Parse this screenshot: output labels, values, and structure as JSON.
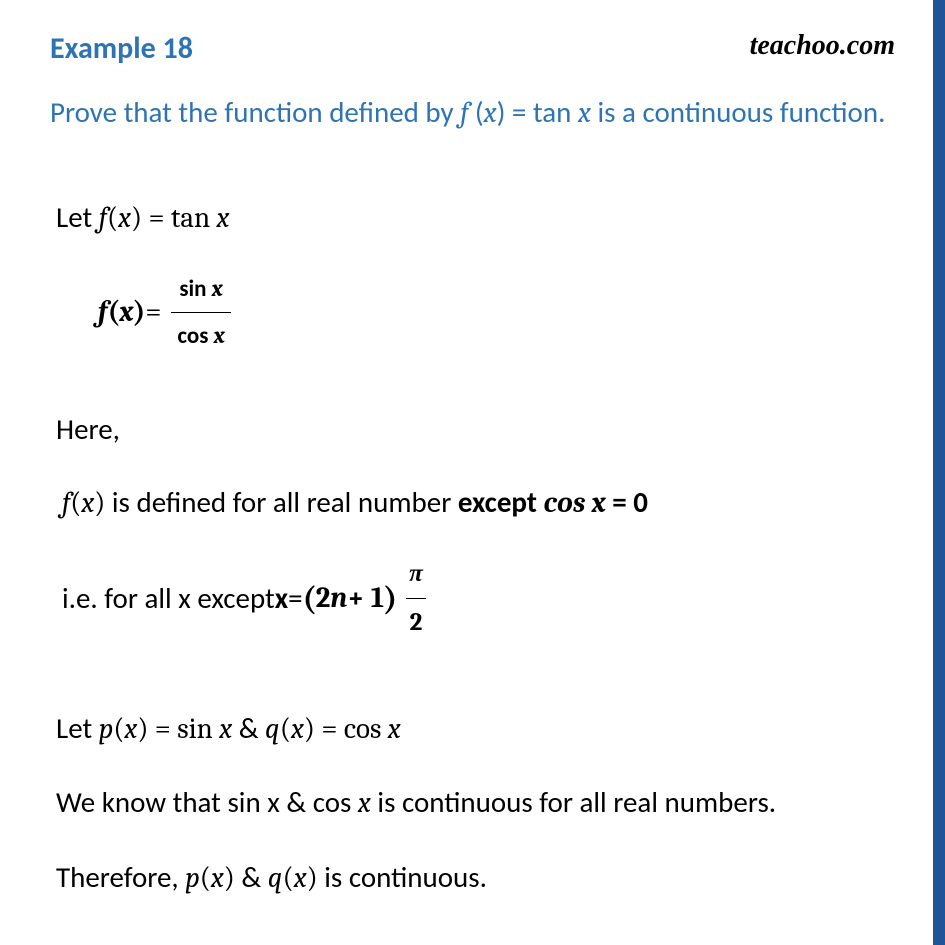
{
  "header": {
    "title": "Example 18",
    "watermark": "teachoo.com"
  },
  "question": {
    "prefix": "Prove that the function defined by ",
    "fx": "f ",
    "fx_paren": "(",
    "fx_var": "x",
    "fx_close": ") = tan ",
    "fx_var2": "x",
    "suffix": " is a continuous function."
  },
  "let_line": {
    "let": "Let  ",
    "fx": "f",
    "paren": "(",
    "x": "x",
    "close": ")",
    "eq": " = tan ",
    "x2": "x"
  },
  "fx_frac": {
    "fx": "f",
    "paren": "(",
    "x": "x",
    "close": ")",
    "eq": " = ",
    "num": "sin ",
    "num_x": "x",
    "den": "cos ",
    "den_x": "x"
  },
  "here": "Here,",
  "defined": {
    "fx": "f",
    "paren": "(",
    "x": "x",
    "close": ")",
    "text": " is defined  for all real number ",
    "except": "except ",
    "cos": "cos x",
    "eq": " = 0"
  },
  "ie": {
    "text": "i.e. for all x except ",
    "x": "x",
    "eq": " = ",
    "paren_open": "(",
    "twon": "2",
    "n": "n",
    "plus": " + 1",
    "paren_close": ")",
    "pi": "π",
    "two": "2"
  },
  "let_pq": {
    "let": "Let ",
    "p": "p",
    "paren1": "(",
    "x1": "x",
    "close1": ")",
    "eq1": " = ",
    "sin": "sin ",
    "x2": "x",
    "amp": "  &  ",
    "q": "q",
    "paren2": "(",
    "x3": "x",
    "close2": ")",
    "eq2": " = ",
    "cos": "cos ",
    "x4": "x"
  },
  "we_know": {
    "text1": "We know that sin x & cos ",
    "x": "x",
    "text2": "  is continuous for all real numbers."
  },
  "therefore": {
    "text1": "Therefore,  ",
    "p": "p",
    "paren1": "(",
    "x1": "x",
    "close1": ")",
    "amp": " & ",
    "q": "q",
    "paren2": "(",
    "x2": "x",
    "close2": ")",
    "text2": "  is continuous."
  },
  "colors": {
    "heading": "#2e74b5",
    "border": "#1f5596",
    "text": "#000000",
    "bg": "#ffffff"
  },
  "typography": {
    "title_size": 30,
    "body_size": 29,
    "frac_size": 23
  }
}
